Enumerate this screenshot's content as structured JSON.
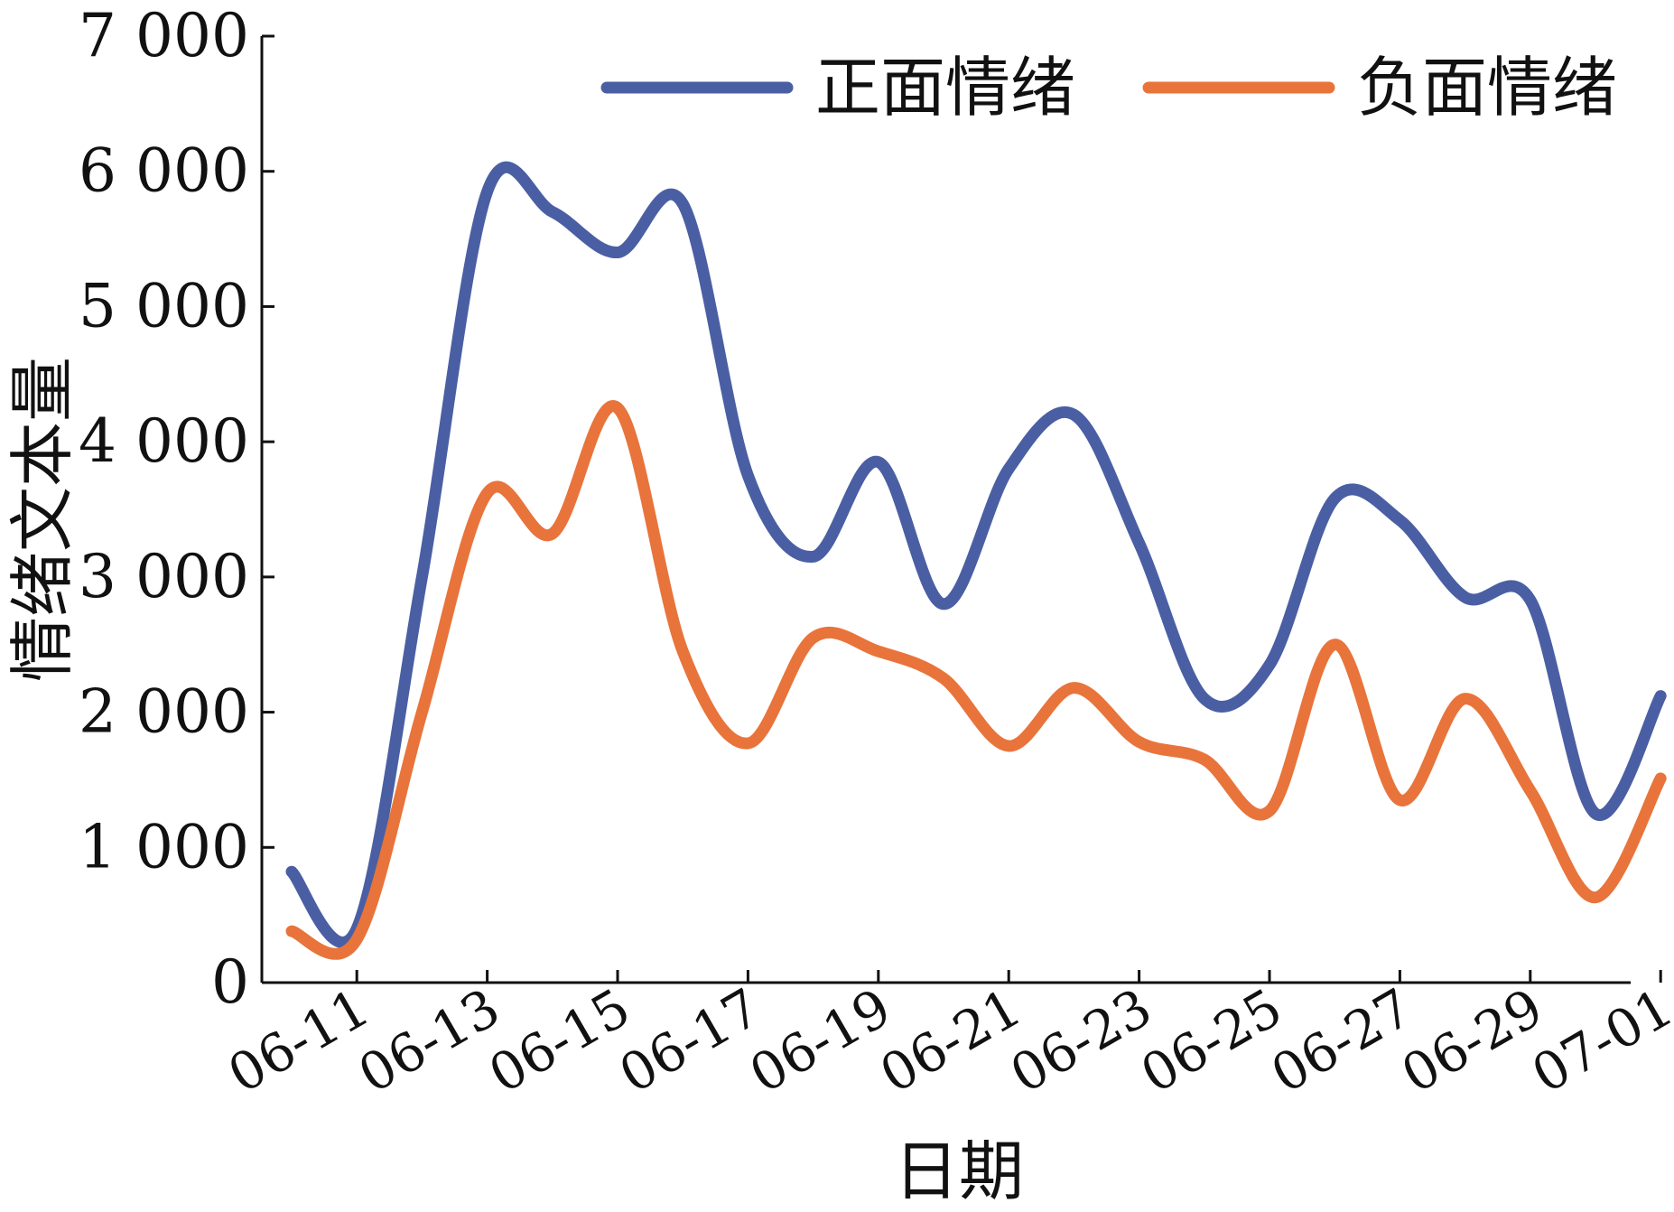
{
  "chart_data": {
    "type": "line",
    "xlabel": "日期",
    "ylabel": "情绪文本量",
    "ylim": [
      0,
      7000
    ],
    "yticks": [
      0,
      1000,
      2000,
      3000,
      4000,
      5000,
      6000,
      7000
    ],
    "ytick_labels": [
      "0",
      "1 000",
      "2 000",
      "3 000",
      "4 000",
      "5 000",
      "6 000",
      "7 000"
    ],
    "x": [
      "06-10",
      "06-11",
      "06-12",
      "06-13",
      "06-14",
      "06-15",
      "06-16",
      "06-17",
      "06-18",
      "06-19",
      "06-20",
      "06-21",
      "06-22",
      "06-23",
      "06-24",
      "06-25",
      "06-26",
      "06-27",
      "06-28",
      "06-29",
      "06-30",
      "07-01"
    ],
    "xtick_labels": [
      "06-11",
      "06-13",
      "06-15",
      "06-17",
      "06-19",
      "06-21",
      "06-23",
      "06-25",
      "06-27",
      "06-29",
      "07-01"
    ],
    "legend_position": "top-right",
    "grid": false,
    "series": [
      {
        "name": "正面情绪",
        "color": "#4a5fa3",
        "values": [
          820,
          400,
          3000,
          5850,
          5700,
          5400,
          5760,
          3750,
          3150,
          3850,
          2800,
          3800,
          4200,
          3250,
          2100,
          2350,
          3580,
          3420,
          2850,
          2830,
          1250,
          2120
        ]
      },
      {
        "name": "负面情绪",
        "color": "#e8743b",
        "values": [
          380,
          320,
          2000,
          3620,
          3320,
          4250,
          2450,
          1770,
          2550,
          2450,
          2250,
          1750,
          2180,
          1780,
          1650,
          1270,
          2500,
          1350,
          2100,
          1420,
          630,
          1510
        ]
      }
    ]
  }
}
